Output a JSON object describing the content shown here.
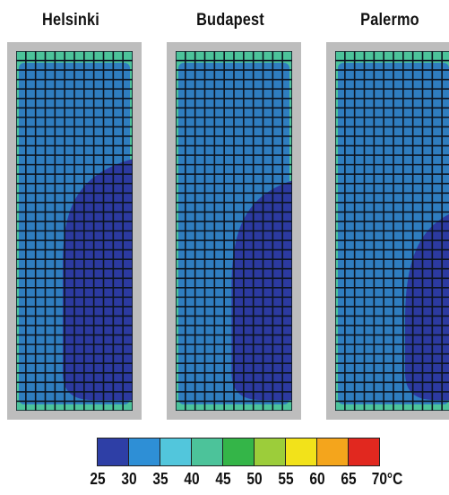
{
  "chart_data": {
    "type": "heatmap",
    "panels": [
      {
        "title": "Helsinki",
        "blue_zone": {
          "top_frac": 0.3,
          "width_frac": 0.6
        }
      },
      {
        "title": "Budapest",
        "blue_zone": {
          "top_frac": 0.36,
          "width_frac": 0.52
        }
      },
      {
        "title": "Palermo",
        "blue_zone": {
          "top_frac": 0.45,
          "width_frac": 0.4
        }
      }
    ],
    "colorbar": {
      "ticks": [
        "25",
        "30",
        "35",
        "40",
        "45",
        "50",
        "55",
        "60",
        "65",
        "70°C"
      ],
      "bin_colors": [
        "#2e3fa6",
        "#2e8fd6",
        "#52c6dc",
        "#4cc39a",
        "#34b548",
        "#9ccd3a",
        "#f2e21a",
        "#f4a51c",
        "#e1281f"
      ]
    }
  }
}
